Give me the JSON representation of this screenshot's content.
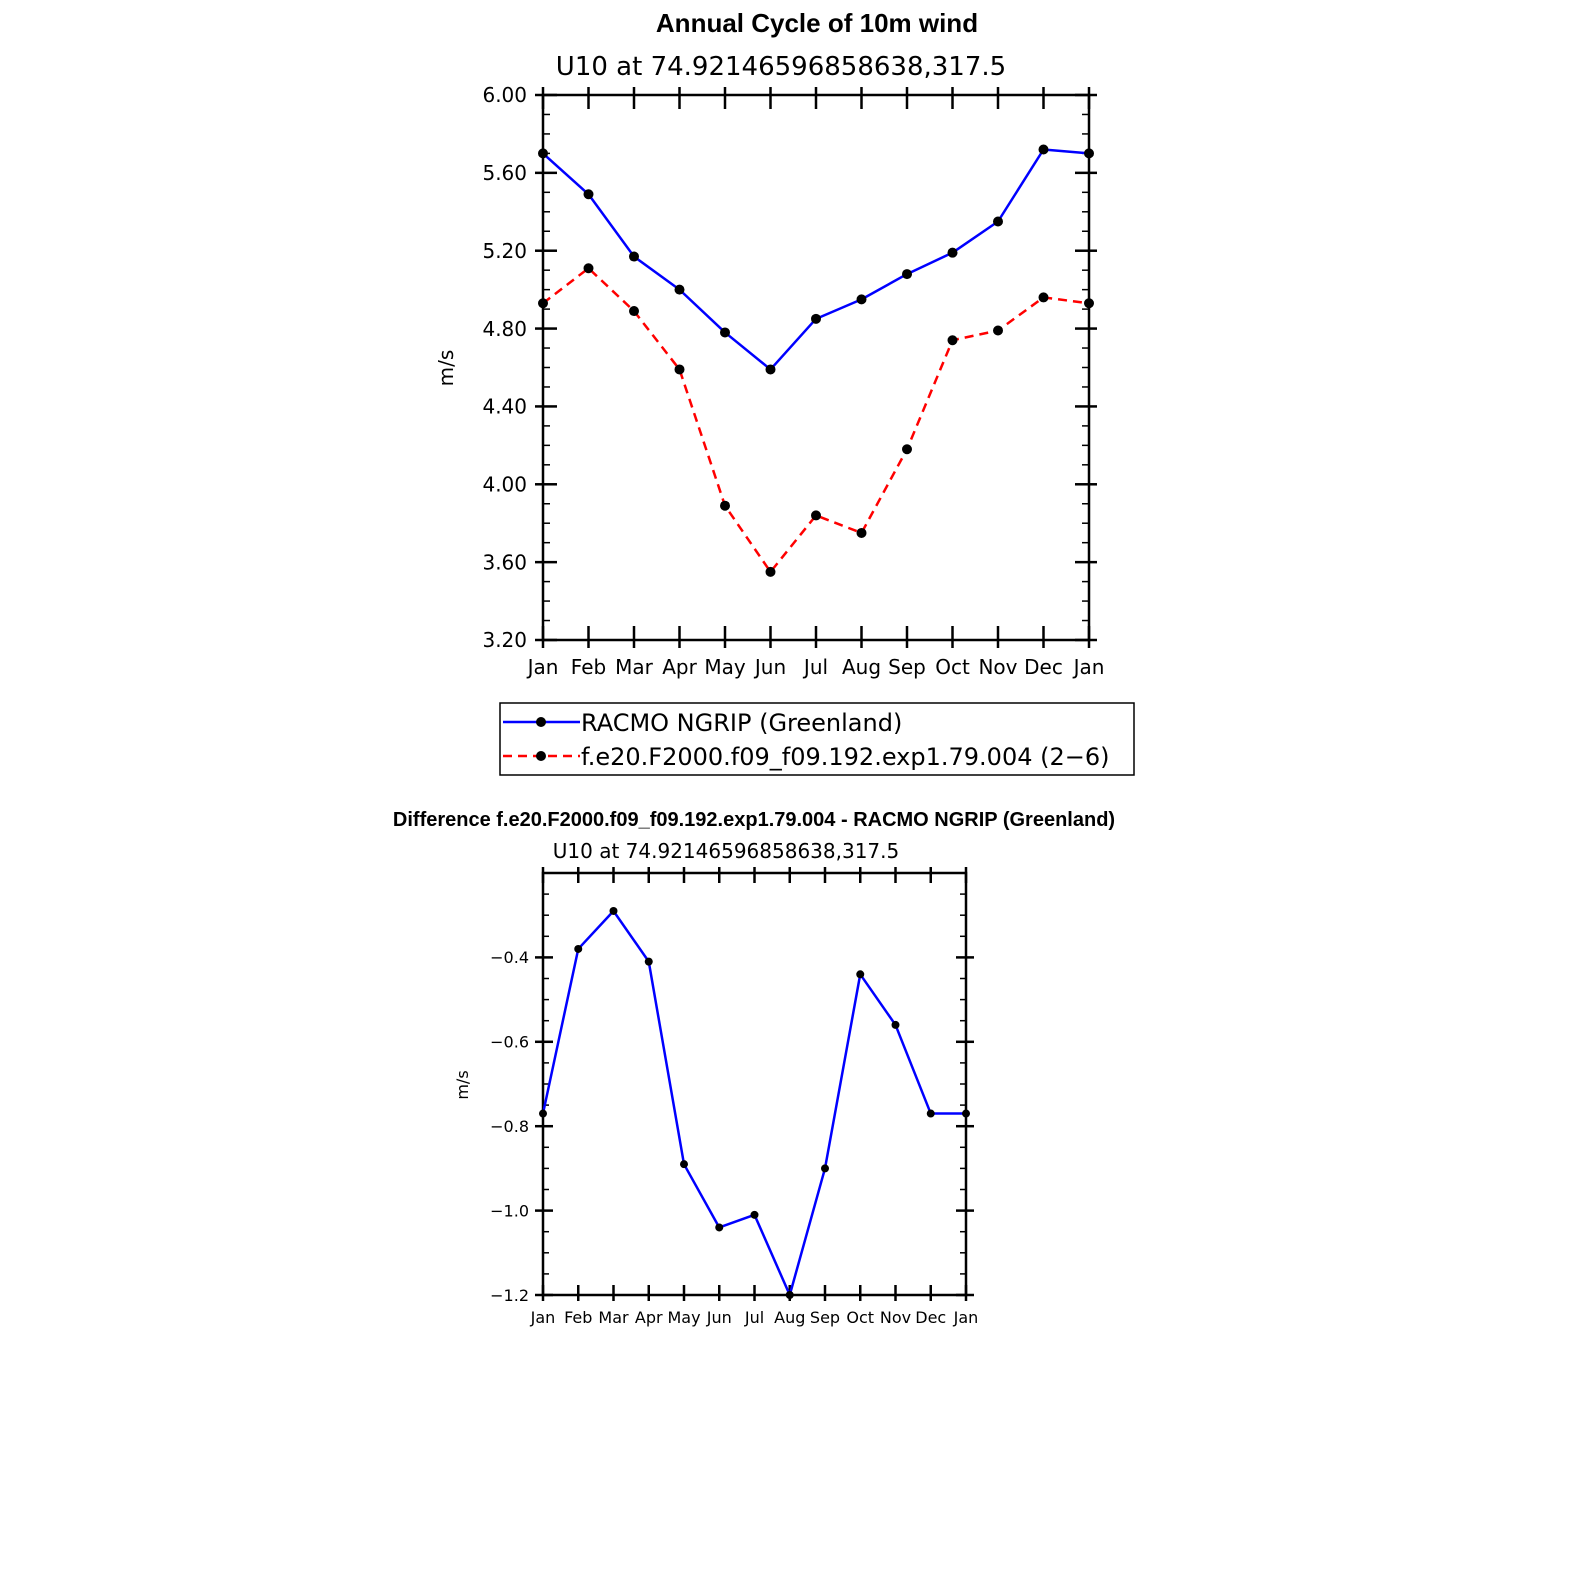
{
  "chart_data": [
    {
      "type": "line",
      "title": "Annual Cycle of 10m wind",
      "subtitle": "U10  at  74.92146596858638,317.5",
      "xlabel": "",
      "ylabel": "m/s",
      "categories": [
        "Jan",
        "Feb",
        "Mar",
        "Apr",
        "May",
        "Jun",
        "Jul",
        "Aug",
        "Sep",
        "Oct",
        "Nov",
        "Dec",
        "Jan"
      ],
      "ylim": [
        3.2,
        6.0
      ],
      "yticks": [
        "3.20",
        "3.60",
        "4.00",
        "4.40",
        "4.80",
        "5.20",
        "5.60",
        "6.00"
      ],
      "series": [
        {
          "name": "RACMO NGRIP (Greenland)",
          "color": "#0000ff",
          "dash": "solid",
          "values": [
            5.7,
            5.49,
            5.17,
            5.0,
            4.78,
            4.59,
            4.85,
            4.95,
            5.08,
            5.19,
            5.35,
            5.72,
            5.7
          ]
        },
        {
          "name": "f.e20.F2000.f09_f09.192.exp1.79.004 (2−6)",
          "color": "#ff0000",
          "dash": "dashed",
          "values": [
            4.93,
            5.11,
            4.89,
            4.59,
            3.89,
            3.55,
            3.84,
            3.75,
            4.18,
            4.74,
            4.79,
            4.96,
            4.93
          ]
        }
      ],
      "legend": "below",
      "grid": false
    },
    {
      "type": "line",
      "title": "Difference f.e20.F2000.f09_f09.192.exp1.79.004 - RACMO NGRIP (Greenland)",
      "subtitle": "U10  at  74.92146596858638,317.5",
      "xlabel": "",
      "ylabel": "m/s",
      "categories": [
        "Jan",
        "Feb",
        "Mar",
        "Apr",
        "May",
        "Jun",
        "Jul",
        "Aug",
        "Sep",
        "Oct",
        "Nov",
        "Dec",
        "Jan"
      ],
      "ylim": [
        -1.2,
        -0.2
      ],
      "yticks": [
        "−1.2",
        "−1.0",
        "−0.8",
        "−0.6",
        "−0.4"
      ],
      "series": [
        {
          "color": "#0000ff",
          "dash": "solid",
          "values": [
            -0.77,
            -0.38,
            -0.29,
            -0.41,
            -0.89,
            -1.04,
            -1.01,
            -1.2,
            -0.9,
            -0.44,
            -0.56,
            -0.77,
            -0.77
          ]
        }
      ],
      "grid": false
    }
  ]
}
